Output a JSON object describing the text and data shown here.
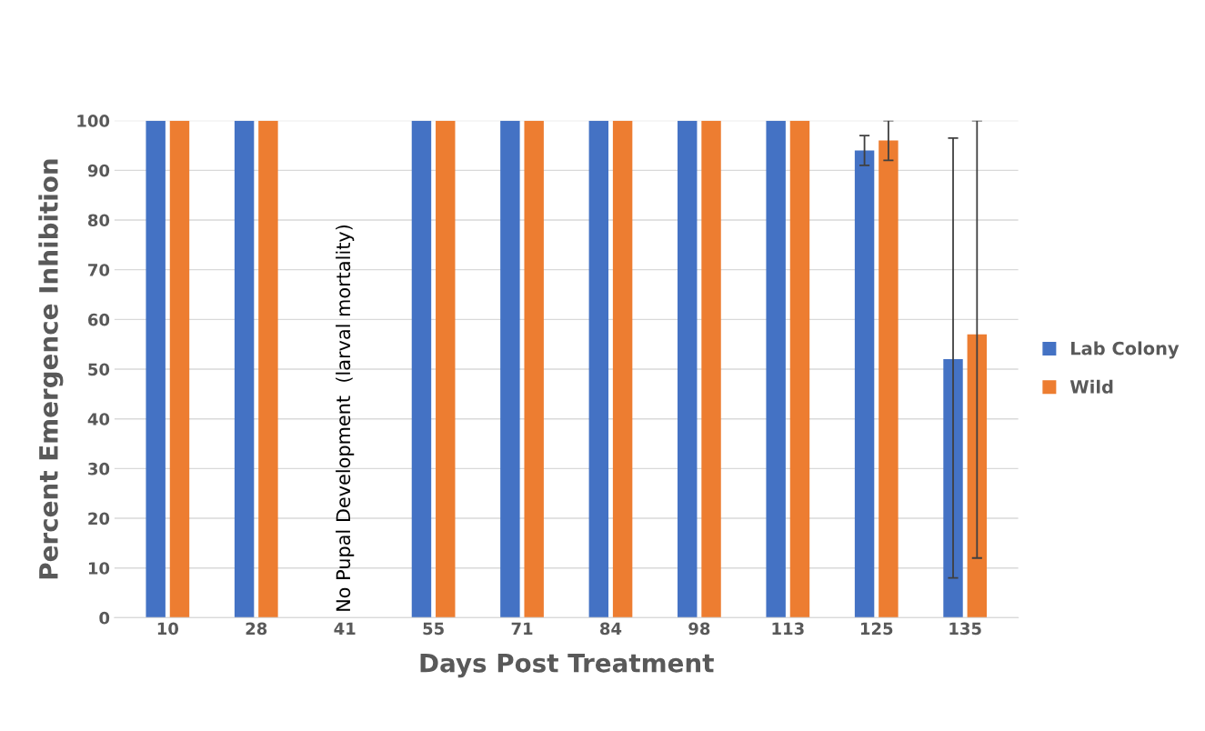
{
  "chart_data": {
    "type": "bar",
    "xlabel": "Days Post Treatment",
    "ylabel": "Percent Emergence Inhibition",
    "categories": [
      "10",
      "28",
      "41",
      "55",
      "71",
      "84",
      "98",
      "113",
      "125",
      "135"
    ],
    "series": [
      {
        "name": "Lab Colony",
        "color": "#4472c4",
        "values": [
          100,
          100,
          null,
          100,
          100,
          100,
          100,
          100,
          94,
          52
        ],
        "errors": [
          null,
          null,
          null,
          null,
          null,
          null,
          null,
          null,
          [
            91,
            97
          ],
          [
            8,
            96.5
          ]
        ]
      },
      {
        "name": "Wild",
        "color": "#ed7d31",
        "values": [
          100,
          100,
          null,
          100,
          100,
          100,
          100,
          100,
          96,
          57
        ],
        "errors": [
          null,
          null,
          null,
          null,
          null,
          null,
          null,
          null,
          [
            92,
            100
          ],
          [
            12,
            100
          ]
        ]
      }
    ],
    "annotations": [
      "No Pupal Development  (larval mortality)"
    ],
    "ylim": [
      0,
      100
    ],
    "yticks": [
      0,
      10,
      20,
      30,
      40,
      50,
      60,
      70,
      80,
      90,
      100
    ],
    "grid": "y",
    "legend": "right"
  }
}
